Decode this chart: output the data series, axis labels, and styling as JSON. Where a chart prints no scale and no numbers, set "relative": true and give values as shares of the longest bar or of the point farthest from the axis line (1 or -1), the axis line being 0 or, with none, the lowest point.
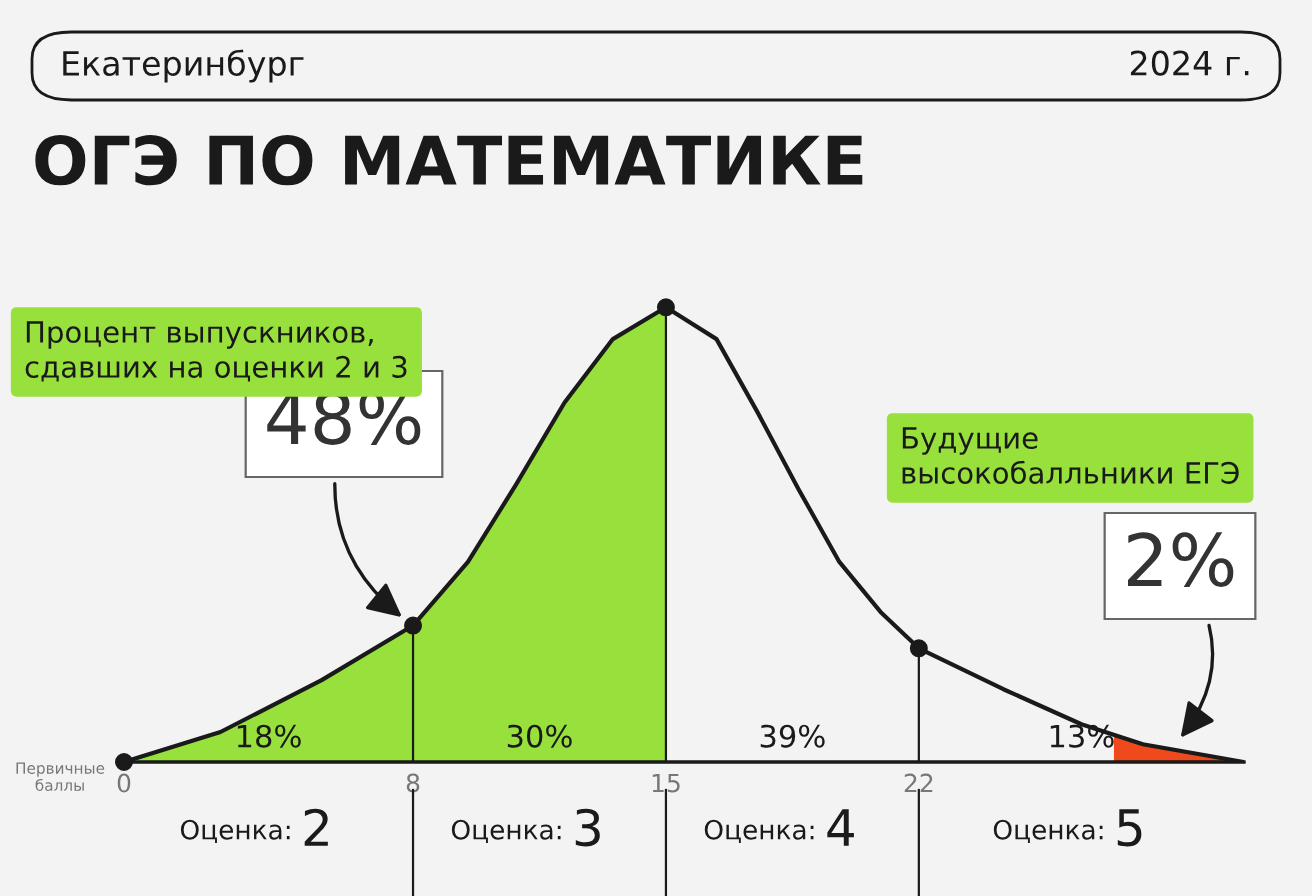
{
  "chart_data": {
    "type": "area",
    "relative": true,
    "title": "ОГЭ ПО МАТЕМАТИКЕ",
    "subtitle": "Екатеринбург",
    "xlabel": "Первичные\nбаллы",
    "xlim": [
      0,
      31
    ],
    "xticks": [
      0,
      8,
      15,
      22
    ],
    "series": [
      {
        "color": "#98e03c",
        "x": [
          0,
          2.67,
          5.47,
          8,
          9.52,
          10.85,
          12.19,
          13.53,
          15
        ],
        "values": [
          0,
          0.066,
          0.18,
          0.3,
          0.44,
          0.61,
          0.79,
          0.93,
          1.0
        ]
      },
      {
        "color": "#f04a1c",
        "x": [
          27.4,
          28.2,
          31
        ],
        "values": [
          0.06,
          0.039,
          0
        ]
      },
      {
        "type": "line",
        "color": "#1a1a1a",
        "line_style": "solid",
        "x": [
          0,
          2.67,
          5.47,
          8,
          9.52,
          10.85,
          12.19,
          13.53,
          15,
          16.4,
          17.53,
          18.67,
          19.8,
          20.94,
          22,
          24.34,
          26.5,
          28.2,
          31
        ],
        "values": [
          0,
          0.066,
          0.18,
          0.3,
          0.44,
          0.61,
          0.79,
          0.93,
          1.0,
          0.93,
          0.77,
          0.6,
          0.44,
          0.33,
          0.25,
          0.16,
          0.083,
          0.039,
          0
        ]
      },
      {
        "type": "lollipop",
        "color": "#1a1a1a",
        "marker": "circle",
        "x": [
          0,
          8,
          15,
          22
        ],
        "values": [
          0,
          0.3,
          1.0,
          0.25
        ]
      }
    ],
    "annotations": [
      "2024 г.",
      "Процент выпускников,\nсдавших на оценки 2 и 3",
      {
        "text": "48%",
        "x": 8,
        "y": 0.3
      },
      "Будущие\nвысокобалльники ЕГЭ",
      {
        "text": "2%",
        "x": 29,
        "y": 0.03
      },
      "18%",
      "30%",
      "39%",
      "13%",
      "Оценка: 2",
      "Оценка: 3",
      "Оценка: 4",
      "Оценка: 5"
    ]
  }
}
